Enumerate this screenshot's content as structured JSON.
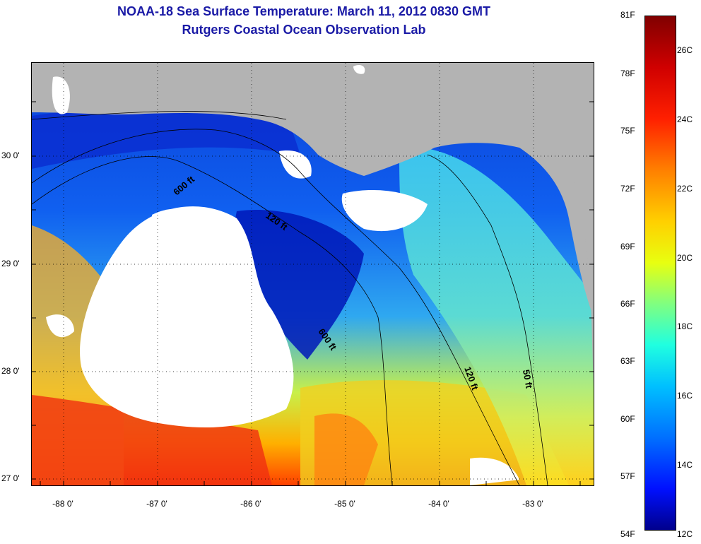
{
  "header": {
    "title": "NOAA-18 Sea Surface Temperature:  March 11, 2012 0830 GMT",
    "subtitle": "Rutgers Coastal Ocean Observation Lab"
  },
  "map": {
    "lat_labels": [
      "30 0'",
      "29 0'",
      "28 0'",
      "27 0'"
    ],
    "lon_labels": [
      "-88 0'",
      "-87 0'",
      "-86 0'",
      "-85 0'",
      "-84 0'",
      "-83 0'"
    ],
    "contours": [
      {
        "label": "600 ft"
      },
      {
        "label": "120 ft"
      },
      {
        "label": "50 ft"
      }
    ],
    "land_color": "#b3b3b3",
    "cloud_color": "#ffffff"
  },
  "colorbar": {
    "fahrenheit": [
      "81F",
      "78F",
      "75F",
      "72F",
      "69F",
      "66F",
      "63F",
      "60F",
      "57F",
      "54F"
    ],
    "celsius": [
      "26C",
      "24C",
      "22C",
      "20C",
      "18C",
      "16C",
      "14C",
      "12C"
    ]
  }
}
